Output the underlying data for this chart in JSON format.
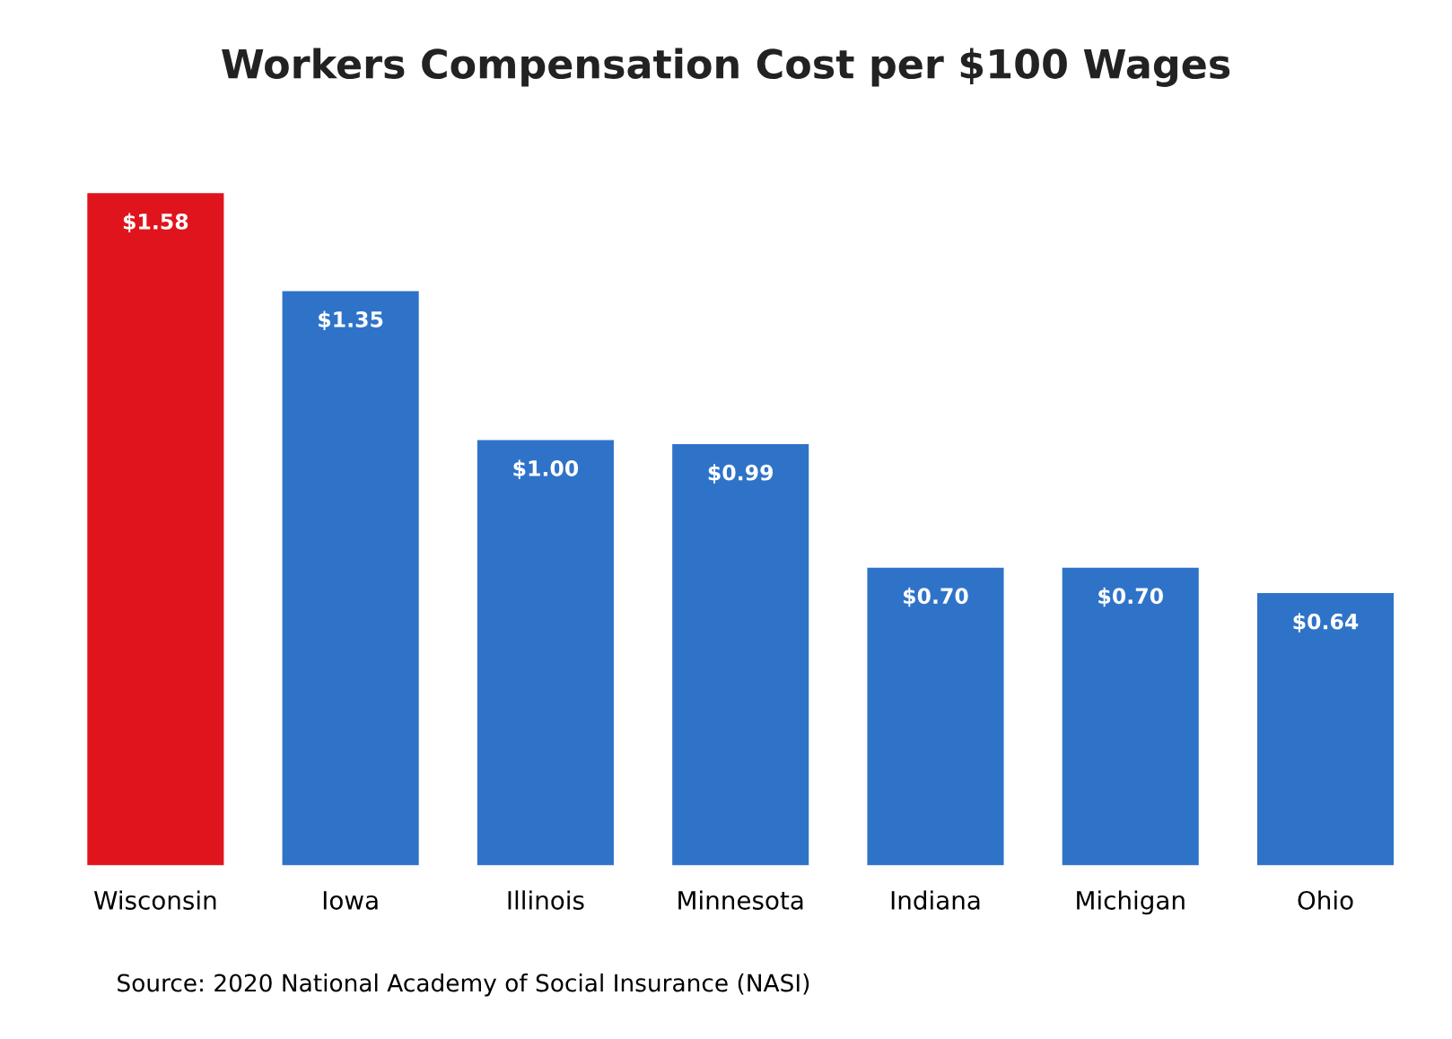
{
  "chart_data": {
    "type": "bar",
    "title": "Workers Compensation Cost per $100 Wages",
    "categories": [
      "Wisconsin",
      "Iowa",
      "Illinois",
      "Minnesota",
      "Indiana",
      "Michigan",
      "Ohio"
    ],
    "values": [
      1.58,
      1.35,
      1.0,
      0.99,
      0.7,
      0.7,
      0.64
    ],
    "value_labels": [
      "$1.58",
      "$1.35",
      "$1.00",
      "$0.99",
      "$0.70",
      "$0.70",
      "$0.64"
    ],
    "colors": [
      "#e0141c",
      "#2f73c9",
      "#2f73c9",
      "#2f73c9",
      "#2f73c9",
      "#2f73c9",
      "#2f73c9"
    ],
    "annotations": [
      "Source: 2020 National Academy of Social Insurance (NASI)"
    ],
    "grid": false,
    "legend": false
  }
}
